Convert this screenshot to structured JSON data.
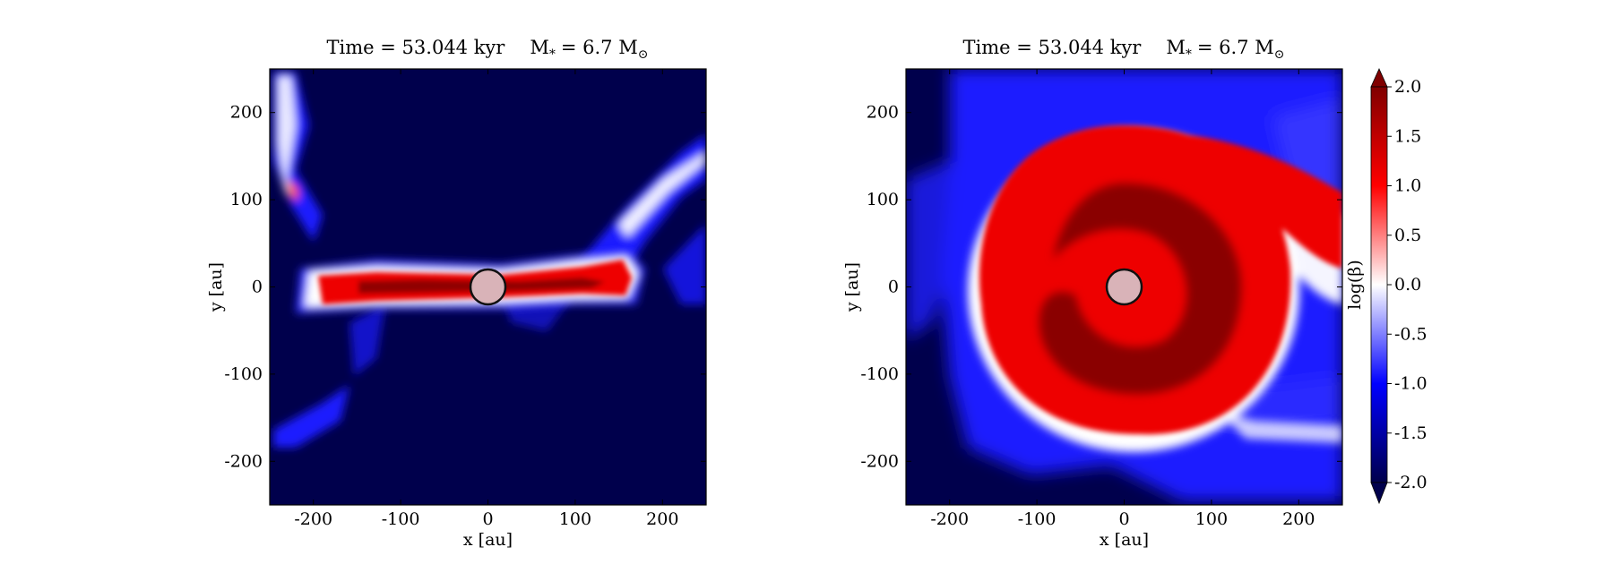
{
  "chart_data": [
    {
      "type": "heatmap",
      "panel": "left",
      "title": "Time = 53.044 kyr    M$_*$ = 6.7 M$_\\odot$",
      "title_text": "Time = 53.044 kyr",
      "title_mass": "M",
      "title_mass_sub": "*",
      "title_mass_value": "= 6.7 M",
      "title_mass_unit_sub": "⊙",
      "xlabel": "x [au]",
      "ylabel": "y [au]",
      "xlim": [
        -250,
        250
      ],
      "ylim": [
        -250,
        250
      ],
      "xticks": [
        -200,
        -100,
        0,
        100,
        200
      ],
      "yticks": [
        -200,
        -100,
        0,
        100,
        200
      ],
      "xtick_labels": [
        "-200",
        "-100",
        "0",
        "100",
        "200"
      ],
      "ytick_labels": [
        "-200",
        "-100",
        "0",
        "100",
        "200"
      ],
      "view": "edge-on",
      "sink_radius_au": 20,
      "features": {
        "disk": {
          "x": [
            -195,
            180
          ],
          "y_halfwidth": 18,
          "value": 1.6
        },
        "outflow_filaments": 4
      }
    },
    {
      "type": "heatmap",
      "panel": "right",
      "title": "Time = 53.044 kyr    M$_*$ = 6.7 M$_\\odot$",
      "title_text": "Time = 53.044 kyr",
      "title_mass": "M",
      "title_mass_sub": "*",
      "title_mass_value": "= 6.7 M",
      "title_mass_unit_sub": "⊙",
      "xlabel": "x [au]",
      "ylabel": "y [au]",
      "xlim": [
        -250,
        250
      ],
      "ylim": [
        -250,
        250
      ],
      "xticks": [
        -200,
        -100,
        0,
        100,
        200
      ],
      "yticks": [
        -200,
        -100,
        0,
        100,
        200
      ],
      "xtick_labels": [
        "-200",
        "-100",
        "0",
        "100",
        "200"
      ],
      "ytick_labels": [
        "-200",
        "-100",
        "0",
        "100",
        "200"
      ],
      "view": "face-on",
      "sink_radius_au": 20,
      "features": {
        "disk": {
          "radius_au": 175,
          "center": [
            10,
            10
          ],
          "value": 1.5
        },
        "spiral_arm": "upper-right"
      }
    }
  ],
  "colorbar": {
    "label": "log(β)",
    "colormap": "seismic",
    "range": [
      -2.0,
      2.0
    ],
    "extend": "both",
    "ticks": [
      2.0,
      1.5,
      1.0,
      0.5,
      0.0,
      -0.5,
      -1.0,
      -1.5,
      -2.0
    ],
    "tick_labels": [
      "2.0",
      "1.5",
      "1.0",
      "0.5",
      "0.0",
      "-0.5",
      "-1.0",
      "-1.5",
      "-2.0"
    ],
    "colors": [
      "#00004c",
      "#0000ff",
      "#ffffff",
      "#ff0000",
      "#800000"
    ]
  },
  "sink": {
    "fill": "#d9b3b8",
    "stroke": "#111111"
  }
}
